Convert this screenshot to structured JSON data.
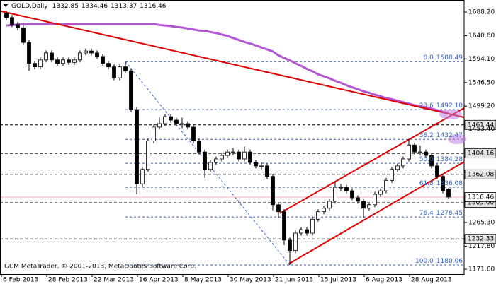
{
  "header": {
    "symbol": "GOLD,Daily"
  },
  "footer": "GCM MetaTrader, © 2001-2013, MetaQuotes Software Corp.",
  "chart_data": {
    "type": "candlestick",
    "categories": [
      null,
      null,
      "6 Feb 2013",
      null,
      null,
      null,
      null,
      null,
      null,
      null,
      "28 Feb 2013",
      null,
      null,
      null,
      null,
      null,
      null,
      null,
      "22 Mar 2013",
      null,
      null,
      null,
      null,
      null,
      null,
      null,
      "16 Apr 2013",
      null,
      null,
      null,
      null,
      null,
      null,
      null,
      "8 May 2013",
      null,
      null,
      null,
      null,
      null,
      null,
      null,
      "30 May 2013",
      null,
      null,
      null,
      null,
      null,
      null,
      null,
      "21 Jun 2013",
      null,
      null,
      null,
      null,
      null,
      null,
      null,
      "15 Jul 2013",
      null,
      null,
      null,
      null,
      null,
      null,
      null,
      "6 Aug 2013",
      null,
      null,
      null,
      null,
      null,
      null,
      null,
      "28 Aug 2013",
      null,
      null,
      null,
      null
    ],
    "open": [
      1685,
      1677,
      1663,
      1656,
      1627,
      1585,
      1578,
      1592,
      1606,
      1592,
      1585,
      1592,
      1587,
      1592,
      1606,
      1610,
      1606,
      1599,
      1585,
      1578,
      1556,
      1578,
      1570,
      1492,
      1343,
      1372,
      1429,
      1457,
      1464,
      1478,
      1471,
      1464,
      1464,
      1457,
      1429,
      1407,
      1372,
      1386,
      1393,
      1400,
      1407,
      1407,
      1393,
      1407,
      1386,
      1379,
      1379,
      1358,
      1301,
      1287,
      1230,
      1209,
      1244,
      1251,
      1244,
      1272,
      1287,
      1294,
      1308,
      1336,
      1336,
      1329,
      1315,
      1308,
      1294,
      1301,
      1322,
      1329,
      1350,
      1372,
      1379,
      1393,
      1421,
      1407,
      1407,
      1400,
      1379,
      1358,
      1332.85
    ],
    "high": [
      1690,
      1682,
      1668,
      1661,
      1632,
      1590,
      1597,
      1611,
      1611,
      1597,
      1597,
      1597,
      1597,
      1611,
      1615,
      1615,
      1611,
      1604,
      1590,
      1583,
      1583,
      1588,
      1575,
      1497,
      1377,
      1434,
      1462,
      1476,
      1483,
      1483,
      1476,
      1476,
      1469,
      1462,
      1434,
      1412,
      1391,
      1398,
      1405,
      1412,
      1415,
      1412,
      1418,
      1412,
      1391,
      1386,
      1384,
      1363,
      1306,
      1292,
      1235,
      1249,
      1256,
      1256,
      1277,
      1292,
      1299,
      1313,
      1347,
      1343,
      1341,
      1334,
      1320,
      1313,
      1306,
      1327,
      1334,
      1355,
      1377,
      1384,
      1398,
      1433,
      1426,
      1420,
      1412,
      1405,
      1384,
      1363,
      1334.46
    ],
    "low": [
      1672,
      1658,
      1651,
      1622,
      1570,
      1573,
      1573,
      1587,
      1587,
      1580,
      1580,
      1582,
      1582,
      1587,
      1601,
      1601,
      1594,
      1580,
      1573,
      1551,
      1551,
      1565,
      1487,
      1322,
      1338,
      1367,
      1424,
      1452,
      1459,
      1466,
      1459,
      1455,
      1452,
      1424,
      1402,
      1355,
      1367,
      1381,
      1388,
      1395,
      1400,
      1388,
      1388,
      1381,
      1374,
      1372,
      1353,
      1290,
      1275,
      1220,
      1180,
      1204,
      1239,
      1239,
      1239,
      1267,
      1282,
      1289,
      1303,
      1329,
      1324,
      1310,
      1303,
      1275,
      1289,
      1296,
      1317,
      1324,
      1345,
      1367,
      1374,
      1388,
      1402,
      1400,
      1395,
      1374,
      1353,
      1324,
      1313.37
    ],
    "close": [
      1677,
      1663,
      1656,
      1627,
      1585,
      1578,
      1592,
      1606,
      1592,
      1585,
      1592,
      1587,
      1592,
      1606,
      1610,
      1606,
      1599,
      1585,
      1578,
      1556,
      1578,
      1570,
      1492,
      1343,
      1372,
      1429,
      1457,
      1464,
      1478,
      1471,
      1464,
      1464,
      1457,
      1429,
      1407,
      1372,
      1386,
      1393,
      1400,
      1407,
      1407,
      1393,
      1407,
      1386,
      1379,
      1379,
      1358,
      1301,
      1287,
      1230,
      1209,
      1244,
      1251,
      1244,
      1272,
      1287,
      1294,
      1308,
      1336,
      1336,
      1329,
      1315,
      1308,
      1294,
      1301,
      1322,
      1329,
      1350,
      1372,
      1379,
      1393,
      1421,
      1407,
      1407,
      1400,
      1379,
      1358,
      1329,
      1316.46
    ],
    "ylim": [
      1161.7,
      1712.3
    ],
    "yticks": [
      {
        "value": 1688.2,
        "label": "1688.20"
      },
      {
        "value": 1640.6,
        "label": "1640.60"
      },
      {
        "value": 1594.1,
        "label": "1594.10"
      },
      {
        "value": 1546.5,
        "label": "1546.50"
      },
      {
        "value": 1499.2,
        "label": "1499.20"
      },
      {
        "value": 1453.4,
        "label": "1453.40"
      },
      {
        "value": 1265.3,
        "label": "1265.30"
      },
      {
        "value": 1217.8,
        "label": "1217.80"
      },
      {
        "value": 1171.6,
        "label": "1171.60"
      }
    ],
    "moving_average": {
      "color": "#b455d6",
      "values": [
        1661,
        1662,
        1663,
        1664,
        1664,
        1664,
        1664,
        1664,
        1664,
        1664,
        1664,
        1664,
        1664,
        1664,
        1664,
        1664,
        1664,
        1664,
        1664,
        1664,
        1664,
        1664,
        1664,
        1664,
        1664,
        1664,
        1664,
        1662,
        1661,
        1660,
        1658,
        1657,
        1655,
        1653,
        1651,
        1650,
        1648,
        1646,
        1643,
        1640,
        1636,
        1632,
        1628,
        1625,
        1621,
        1617,
        1613,
        1609,
        1601,
        1596,
        1591,
        1585,
        1580,
        1574,
        1569,
        1563,
        1559,
        1555,
        1550,
        1546,
        1541,
        1537,
        1533,
        1529,
        1526,
        1522,
        1519,
        1515,
        1513,
        1510,
        1507,
        1504,
        1501,
        1499,
        1497,
        1494,
        1491,
        1488,
        1485
      ]
    },
    "trendlines": {
      "color": "#e00000",
      "lines": [
        {
          "x": [
            -1,
            81
          ],
          "y": [
            1690,
            1476
          ]
        },
        {
          "x": [
            49.9,
            81
          ],
          "y": [
            1183,
            1389
          ]
        },
        {
          "x": [
            48.25,
            81
          ],
          "y": [
            1284,
            1497
          ]
        }
      ]
    },
    "hlines": [
      1461.44,
      1404.16,
      1362.08,
      {
        "value": 1305,
        "label": "1305.00"
      },
      1232.33
    ],
    "fibo": {
      "color": "#2f5fc0",
      "levels": [
        {
          "ratio": "0.0",
          "price": 1588.49
        },
        {
          "ratio": "23.6",
          "price": {
            "value": 1492.1,
            "label": "1492.10"
          }
        },
        {
          "ratio": "38.2",
          "price": 1432.47
        },
        {
          "ratio": "50.0",
          "price": 1384.28
        },
        {
          "ratio": "61.8",
          "price": 1336.08
        },
        {
          "ratio": "76.4",
          "price": 1276.45
        },
        {
          "ratio": "100.0",
          "price": 1180.06
        }
      ]
    }
  }
}
